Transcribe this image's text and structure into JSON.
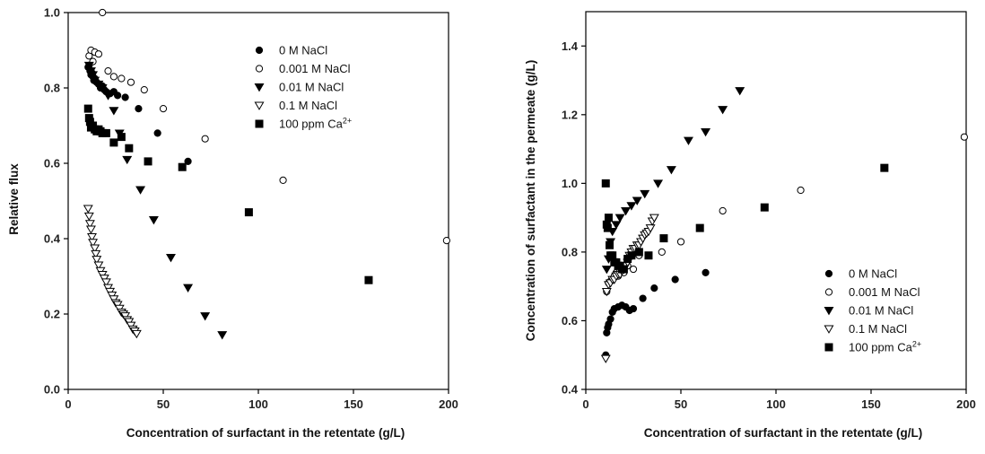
{
  "chart_data": [
    {
      "type": "scatter",
      "xlabel": "Concentration of surfactant in the retentate (g/L)",
      "ylabel": "Relative flux",
      "xlim": [
        0,
        200
      ],
      "ylim": [
        0,
        1.0
      ],
      "xticks": [
        "0",
        "50",
        "100",
        "150",
        "200"
      ],
      "yticks": [
        "0.0",
        "0.2",
        "0.4",
        "0.6",
        "0.8",
        "1.0"
      ],
      "legend_position": "top-right",
      "series": [
        {
          "name": "0 M NaCl",
          "marker": "filled-circle",
          "x": [
            10.5,
            11,
            11.5,
            12,
            12.5,
            13,
            13.5,
            14,
            15,
            16,
            17,
            18,
            19,
            20,
            22,
            24,
            26,
            30,
            37,
            47,
            63
          ],
          "y": [
            0.855,
            0.86,
            0.845,
            0.835,
            0.84,
            0.83,
            0.82,
            0.825,
            0.815,
            0.81,
            0.8,
            0.805,
            0.795,
            0.79,
            0.785,
            0.79,
            0.78,
            0.775,
            0.745,
            0.68,
            0.605
          ]
        },
        {
          "name": "0.001 M NaCl",
          "marker": "open-circle",
          "x": [
            11,
            12,
            13,
            14,
            16,
            18,
            21,
            24,
            28,
            33,
            40,
            50,
            72,
            113,
            199
          ],
          "y": [
            0.885,
            0.9,
            0.87,
            0.895,
            0.89,
            1.0,
            0.845,
            0.83,
            0.825,
            0.815,
            0.795,
            0.745,
            0.665,
            0.555,
            0.395
          ]
        },
        {
          "name": "0.01 M NaCl",
          "marker": "filled-triangle-down",
          "x": [
            11,
            12,
            13,
            14,
            16,
            18,
            21,
            24,
            27,
            31,
            38,
            45,
            54,
            63,
            72,
            81
          ],
          "y": [
            0.86,
            0.845,
            0.835,
            0.82,
            0.81,
            0.8,
            0.78,
            0.74,
            0.68,
            0.61,
            0.53,
            0.45,
            0.35,
            0.27,
            0.195,
            0.145
          ]
        },
        {
          "name": "0.1 M NaCl",
          "marker": "open-triangle-down",
          "x": [
            10.5,
            11,
            11.5,
            12,
            12.5,
            13,
            14,
            14.5,
            15,
            16,
            17,
            18,
            19,
            20,
            21,
            22,
            23,
            24,
            25,
            26,
            27,
            28,
            29,
            30,
            31,
            32,
            33,
            34,
            35,
            36
          ],
          "y": [
            0.48,
            0.46,
            0.44,
            0.425,
            0.405,
            0.39,
            0.375,
            0.36,
            0.345,
            0.33,
            0.315,
            0.305,
            0.295,
            0.285,
            0.27,
            0.26,
            0.25,
            0.24,
            0.23,
            0.225,
            0.215,
            0.205,
            0.2,
            0.195,
            0.185,
            0.18,
            0.17,
            0.16,
            0.155,
            0.148
          ]
        },
        {
          "name": "100 ppm Ca2+",
          "marker": "filled-square",
          "x": [
            10.5,
            11,
            11.5,
            12,
            13,
            14,
            15,
            16,
            17,
            18,
            20,
            24,
            28,
            32,
            42,
            60,
            95,
            158
          ],
          "y": [
            0.745,
            0.72,
            0.71,
            0.695,
            0.7,
            0.69,
            0.685,
            0.69,
            0.685,
            0.68,
            0.68,
            0.655,
            0.67,
            0.64,
            0.605,
            0.59,
            0.47,
            0.29
          ]
        }
      ]
    },
    {
      "type": "scatter",
      "xlabel": "Concentration of surfactant in the retentate (g/L)",
      "ylabel": "Concentration of surfactant in the permeate (g/L)",
      "xlim": [
        0,
        200
      ],
      "ylim": [
        0.4,
        1.5
      ],
      "xticks": [
        "0",
        "50",
        "100",
        "150",
        "200"
      ],
      "yticks": [
        "0.4",
        "0.6",
        "0.8",
        "1.0",
        "1.2",
        "1.4"
      ],
      "legend_position": "bottom-right",
      "series": [
        {
          "name": "0 M NaCl",
          "marker": "filled-circle",
          "x": [
            10.5,
            11,
            11.5,
            12,
            13,
            14,
            15,
            17,
            19,
            21,
            23,
            25,
            30,
            36,
            47,
            63
          ],
          "y": [
            0.5,
            0.565,
            0.58,
            0.59,
            0.605,
            0.625,
            0.635,
            0.64,
            0.645,
            0.64,
            0.63,
            0.635,
            0.665,
            0.695,
            0.72,
            0.74
          ]
        },
        {
          "name": "0.001 M NaCl",
          "marker": "open-circle",
          "x": [
            11,
            12,
            13,
            14,
            15,
            16,
            17,
            18,
            20,
            22,
            25,
            28,
            33,
            40,
            50,
            72,
            113,
            199
          ],
          "y": [
            0.685,
            0.71,
            0.715,
            0.72,
            0.73,
            0.74,
            0.73,
            0.745,
            0.74,
            0.76,
            0.75,
            0.79,
            0.79,
            0.8,
            0.83,
            0.92,
            0.98,
            1.135
          ]
        },
        {
          "name": "0.01 M NaCl",
          "marker": "filled-triangle-down",
          "x": [
            11,
            12,
            13,
            14,
            16,
            18,
            21,
            24,
            27,
            31,
            38,
            45,
            54,
            63,
            72,
            81
          ],
          "y": [
            0.75,
            0.78,
            0.83,
            0.86,
            0.88,
            0.9,
            0.92,
            0.935,
            0.95,
            0.97,
            1.0,
            1.04,
            1.125,
            1.15,
            1.215,
            1.27
          ]
        },
        {
          "name": "0.1 M NaCl",
          "marker": "open-triangle-down",
          "x": [
            10.5,
            11,
            12,
            13,
            14,
            15,
            16,
            17,
            18,
            19,
            20,
            21,
            22,
            23,
            24,
            25,
            26,
            27,
            28,
            29,
            30,
            31,
            32,
            33,
            34,
            35,
            36
          ],
          "y": [
            0.49,
            0.685,
            0.705,
            0.71,
            0.72,
            0.72,
            0.73,
            0.735,
            0.735,
            0.745,
            0.75,
            0.76,
            0.77,
            0.79,
            0.8,
            0.81,
            0.81,
            0.82,
            0.82,
            0.83,
            0.84,
            0.85,
            0.855,
            0.86,
            0.87,
            0.89,
            0.9
          ]
        },
        {
          "name": "100 ppm Ca2+",
          "marker": "filled-square",
          "x": [
            10.5,
            11,
            11.5,
            12,
            12.5,
            13,
            14,
            15,
            16,
            17,
            18,
            19,
            20,
            22,
            24,
            28,
            33,
            41,
            60,
            94,
            157
          ],
          "y": [
            1.0,
            0.88,
            0.87,
            0.9,
            0.82,
            0.79,
            0.79,
            0.77,
            0.77,
            0.76,
            0.76,
            0.75,
            0.75,
            0.78,
            0.79,
            0.8,
            0.79,
            0.84,
            0.87,
            0.93,
            1.045
          ]
        }
      ]
    }
  ]
}
